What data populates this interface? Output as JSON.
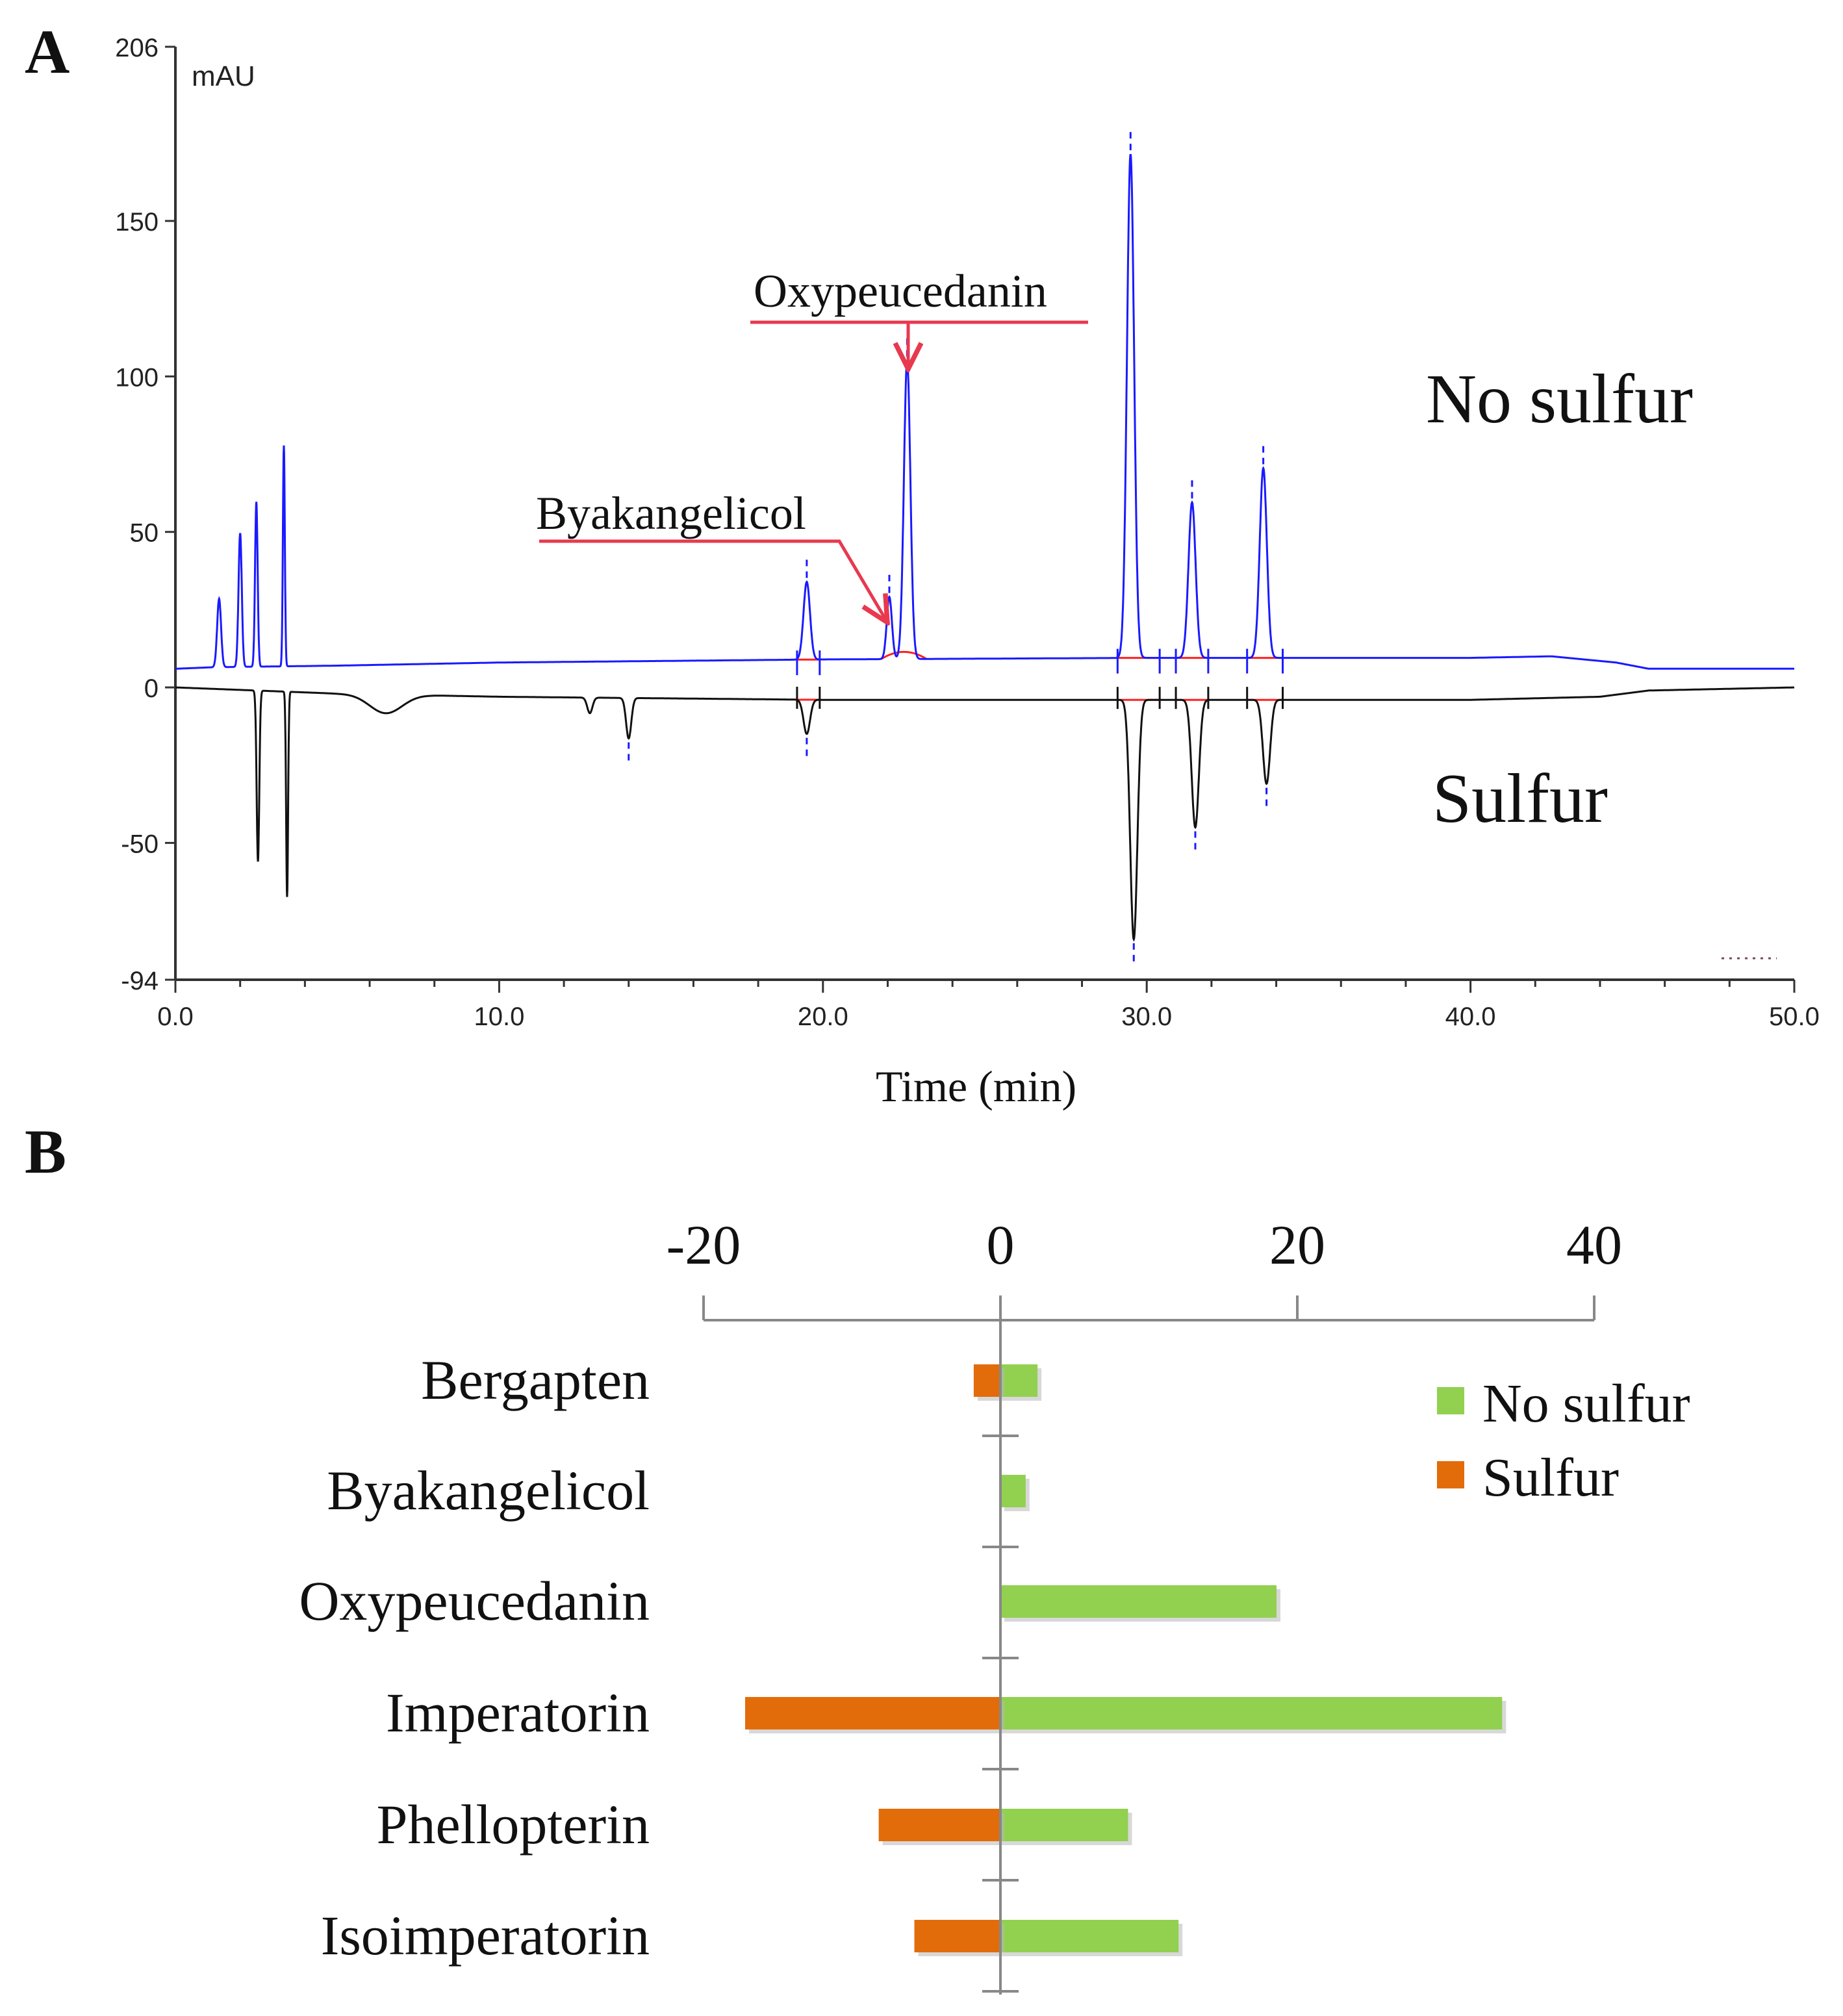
{
  "panel_a": {
    "letter": "A",
    "chart_data": {
      "type": "line",
      "title": "",
      "xlabel": "Time (min)",
      "ylabel": "mAU",
      "xlim": [
        0,
        50
      ],
      "ylim": [
        -94,
        206
      ],
      "x_ticks": [
        0,
        10,
        20,
        30,
        40,
        50
      ],
      "x_tick_labels": [
        "0.0",
        "10.0",
        "20.0",
        "30.0",
        "40.0",
        "50.0"
      ],
      "y_ticks": [
        206,
        150,
        100,
        50,
        0,
        -50,
        -94
      ],
      "y_tick_labels": [
        "206",
        "150",
        "100",
        "50",
        "0",
        "-50",
        "-94"
      ],
      "series": [
        {
          "name": "No sulfur",
          "color": "#1a1aff",
          "baseline_points": [
            [
              0,
              6
            ],
            [
              1.2,
              6.5
            ],
            [
              5,
              7
            ],
            [
              10,
              8
            ],
            [
              20,
              9
            ],
            [
              30,
              9.5
            ],
            [
              40,
              9.5
            ],
            [
              42.5,
              10
            ],
            [
              44.5,
              8
            ],
            [
              45.5,
              6
            ],
            [
              50,
              6
            ]
          ],
          "peaks": [
            {
              "rt": 1.35,
              "height": 22,
              "width": 0.06
            },
            {
              "rt": 2.0,
              "height": 43,
              "width": 0.05
            },
            {
              "rt": 2.5,
              "height": 53,
              "width": 0.04
            },
            {
              "rt": 3.35,
              "height": 71,
              "width": 0.03
            },
            {
              "rt": 19.5,
              "height": 25,
              "width": 0.1
            },
            {
              "rt": 22.05,
              "height": 20,
              "width": 0.08
            },
            {
              "rt": 22.6,
              "height": 96,
              "width": 0.1
            },
            {
              "rt": 29.5,
              "height": 162,
              "width": 0.11
            },
            {
              "rt": 31.4,
              "height": 50,
              "width": 0.11
            },
            {
              "rt": 33.6,
              "height": 61,
              "width": 0.11
            }
          ]
        },
        {
          "name": "Sulfur",
          "color": "#111111",
          "baseline_points": [
            [
              0,
              0
            ],
            [
              5,
              -2
            ],
            [
              10,
              -3
            ],
            [
              20,
              -4
            ],
            [
              30,
              -4
            ],
            [
              40,
              -4
            ],
            [
              44,
              -3
            ],
            [
              45.5,
              -1
            ],
            [
              50,
              0
            ]
          ],
          "peaks": [
            {
              "rt": 2.55,
              "height": -55,
              "width": 0.04
            },
            {
              "rt": 3.45,
              "height": -66,
              "width": 0.03
            },
            {
              "rt": 6.5,
              "height": -6,
              "width": 0.5
            },
            {
              "rt": 12.8,
              "height": -5,
              "width": 0.08
            },
            {
              "rt": 14.0,
              "height": -13,
              "width": 0.08
            },
            {
              "rt": 19.5,
              "height": -11,
              "width": 0.1
            },
            {
              "rt": 29.6,
              "height": -77,
              "width": 0.11
            },
            {
              "rt": 31.5,
              "height": -41,
              "width": 0.11
            },
            {
              "rt": 33.7,
              "height": -27,
              "width": 0.11
            }
          ]
        }
      ],
      "annotations": [
        {
          "text": "Oxypeucedanin",
          "target_rt": 22.6,
          "target_value": 100
        },
        {
          "text": "Byakangelicol",
          "target_rt": 22.05,
          "target_value": 20
        }
      ],
      "series_labels": [
        "No sulfur",
        "Sulfur"
      ],
      "integration_windows": [
        [
          19.2,
          19.9
        ],
        [
          29.1,
          30.4
        ],
        [
          30.9,
          31.9
        ],
        [
          33.1,
          34.2
        ]
      ]
    }
  },
  "panel_b": {
    "letter": "B",
    "chart_data": {
      "type": "bar",
      "orientation": "horizontal",
      "categories": [
        "Bergapten",
        "Byakangelicol",
        "Oxypeucedanin",
        "Imperatorin",
        "Phellopterin",
        "Isoimperatorin"
      ],
      "series": [
        {
          "name": "No sulfur",
          "color": "#92d050",
          "values": [
            2.5,
            1.7,
            18.6,
            33.8,
            8.6,
            12.0
          ]
        },
        {
          "name": "Sulfur",
          "color": "#e36c0a",
          "values": [
            -1.8,
            0,
            0,
            -17.2,
            -8.2,
            -5.8
          ]
        }
      ],
      "x_ticks": [
        -20,
        0,
        20,
        40
      ],
      "x_tick_labels": [
        "-20",
        "0",
        "20",
        "40"
      ],
      "xlim": [
        -20,
        40
      ],
      "legend_position": "right"
    }
  }
}
